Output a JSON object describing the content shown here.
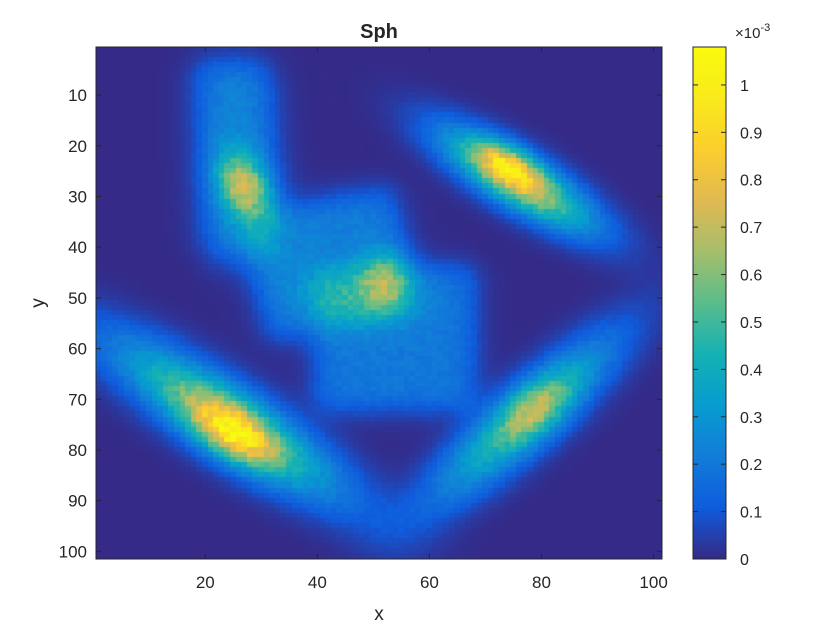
{
  "chart_data": {
    "type": "heatmap",
    "title": "Sph",
    "xlabel": "x",
    "ylabel": "y",
    "xlim": [
      0.5,
      101.5
    ],
    "ylim": [
      0.5,
      101.5
    ],
    "y_direction": "reverse",
    "x_ticks": [
      20,
      40,
      60,
      80,
      100
    ],
    "y_ticks": [
      10,
      20,
      30,
      40,
      50,
      60,
      70,
      80,
      90,
      100
    ],
    "colormap": "parula",
    "colorbar": {
      "location": "right",
      "multiplier": "×10",
      "exponent": "-3",
      "ticks": [
        0,
        0.1,
        0.2,
        0.3,
        0.4,
        0.5,
        0.6,
        0.7,
        0.8,
        0.9,
        1
      ],
      "tick_labels": [
        "0",
        "0.1",
        "0.2",
        "0.3",
        "0.4",
        "0.5",
        "0.6",
        "0.7",
        "0.8",
        "0.9",
        "1"
      ],
      "clim": [
        0,
        1.08
      ]
    },
    "regions": [
      {
        "name": "upper-left arm",
        "peak": {
          "x": 27,
          "y": 28
        },
        "peak_value": 0.75
      },
      {
        "name": "central square",
        "peak": {
          "x": 52,
          "y": 47
        },
        "peak_value": 0.55
      },
      {
        "name": "lower-central square",
        "peak": {
          "x": 60,
          "y": 62
        },
        "peak_value": 0.25
      },
      {
        "name": "upper-right arm",
        "peak": {
          "x": 75,
          "y": 25
        },
        "peak_value": 1.05
      },
      {
        "name": "lower-left arm",
        "peak": {
          "x": 25,
          "y": 77
        },
        "peak_value": 1.07
      },
      {
        "name": "lower-right arm",
        "peak": {
          "x": 78,
          "y": 73
        },
        "peak_value": 0.7
      }
    ]
  }
}
